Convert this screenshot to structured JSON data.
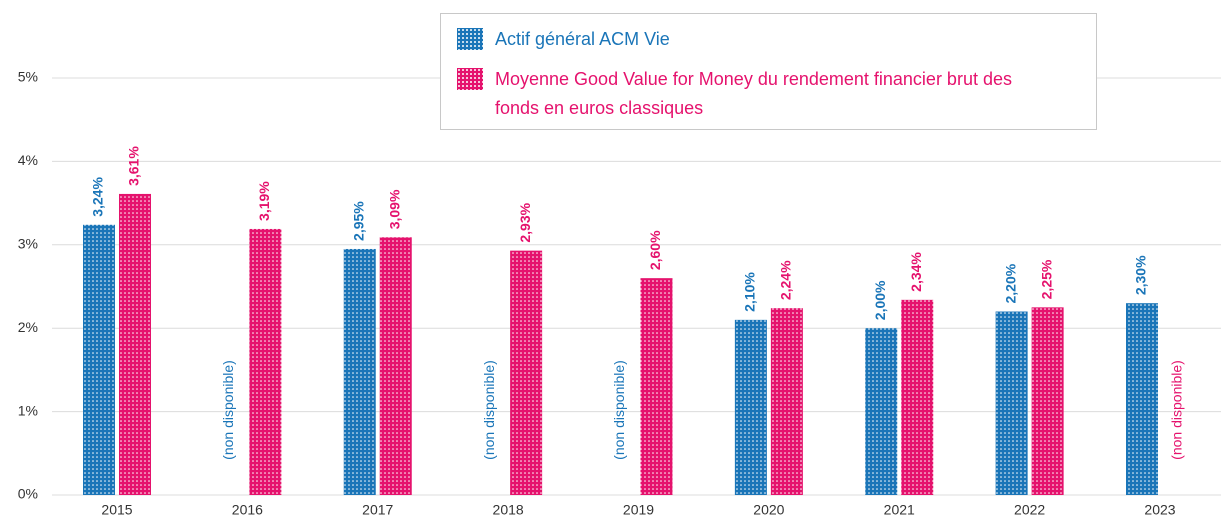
{
  "chart_data": {
    "type": "bar",
    "categories": [
      "2015",
      "2016",
      "2017",
      "2018",
      "2019",
      "2020",
      "2021",
      "2022",
      "2023"
    ],
    "series": [
      {
        "name": "Actif général ACM Vie",
        "color": "#1a75b8",
        "values": [
          3.24,
          null,
          2.95,
          null,
          null,
          2.1,
          2.0,
          2.2,
          2.3
        ],
        "value_labels": [
          "3,24%",
          "(non disponible)",
          "2,95%",
          "(non disponible)",
          "(non disponible)",
          "2,10%",
          "2,00%",
          "2,20%",
          "2,30%"
        ]
      },
      {
        "name": "Moyenne Good Value for Money du rendement financier brut des fonds en euros classiques",
        "color": "#e5126d",
        "values": [
          3.61,
          3.19,
          3.09,
          2.93,
          2.6,
          2.24,
          2.34,
          2.25,
          null
        ],
        "value_labels": [
          "3,61%",
          "3,19%",
          "3,09%",
          "2,93%",
          "2,60%",
          "2,24%",
          "2,34%",
          "2,25%",
          "(non disponible)"
        ]
      }
    ],
    "ylim": [
      0,
      5.4
    ],
    "yticks": [
      {
        "value": 0,
        "label": "0%"
      },
      {
        "value": 1,
        "label": "1%"
      },
      {
        "value": 2,
        "label": "2%"
      },
      {
        "value": 3,
        "label": "3%"
      },
      {
        "value": 4,
        "label": "4%"
      },
      {
        "value": 5,
        "label": "5%"
      }
    ],
    "grid": true
  }
}
